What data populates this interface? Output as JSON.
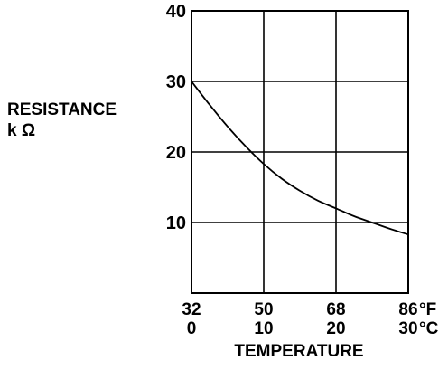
{
  "chart_data": {
    "type": "line",
    "ylabel_lines": [
      "RESISTANCE",
      "k Ω"
    ],
    "xlabel": "TEMPERATURE",
    "ylim": [
      0,
      40
    ],
    "yticks": [
      10,
      20,
      30,
      40
    ],
    "xlim": [
      0,
      30
    ],
    "grid": true,
    "x_ticks_primary": {
      "unit": "°F",
      "labels": [
        "32",
        "50",
        "68",
        "86"
      ]
    },
    "x_ticks_secondary": {
      "unit": "°C",
      "labels": [
        "0",
        "10",
        "20",
        "30"
      ]
    },
    "x_tick_positions_c": [
      0,
      10,
      20,
      30
    ],
    "series": [
      {
        "x": [
          0,
          2.5,
          5,
          7.5,
          10,
          12.5,
          15,
          17.5,
          20,
          22.5,
          25,
          27.5,
          30
        ],
        "y": [
          30,
          26.7,
          23.6,
          20.8,
          18.3,
          16.2,
          14.5,
          13.1,
          12.0,
          10.9,
          10.0,
          9.1,
          8.3
        ]
      }
    ],
    "colors": {
      "line": "#000000",
      "grid": "#000000",
      "background": "#ffffff"
    }
  }
}
